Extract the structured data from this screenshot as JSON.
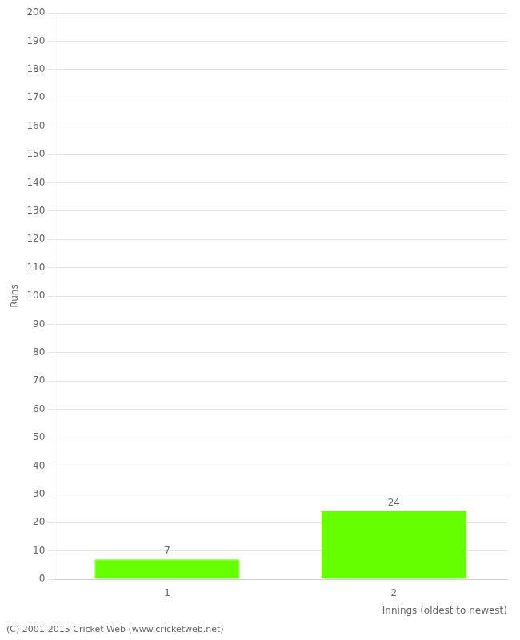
{
  "chart_data": {
    "type": "bar",
    "categories": [
      "1",
      "2"
    ],
    "values": [
      7,
      24
    ],
    "color": "#66ff00",
    "xlabel": "Innings (oldest to newest)",
    "ylabel": "Runs",
    "ylim": [
      0,
      200
    ],
    "yticks": [
      0,
      10,
      20,
      30,
      40,
      50,
      60,
      70,
      80,
      90,
      100,
      110,
      120,
      130,
      140,
      150,
      160,
      170,
      180,
      190,
      200
    ],
    "grid": true,
    "data_labels": true,
    "annotations": [
      "(C) 2001-2015 Cricket Web (www.cricketweb.net)"
    ]
  }
}
